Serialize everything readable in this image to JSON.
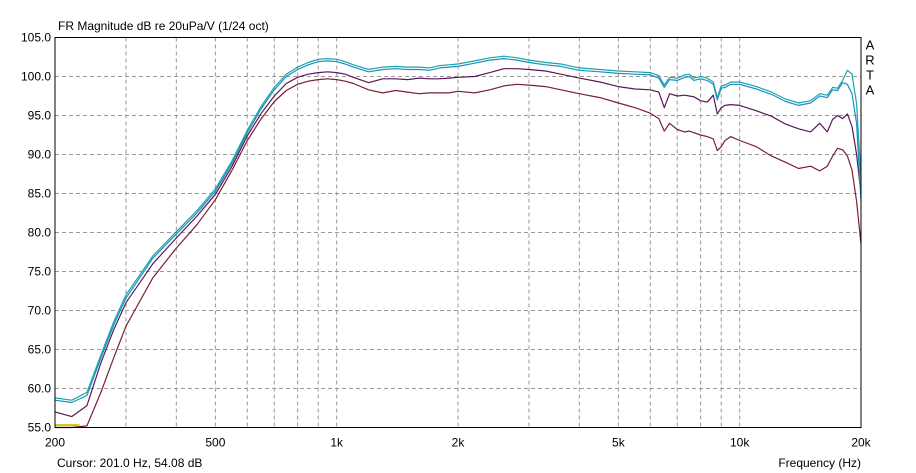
{
  "chart_data": {
    "type": "line",
    "title": "FR Magnitude dB re 20uPa/V (1/24 oct)",
    "xlabel": "Frequency (Hz)",
    "ylabel": "",
    "x_scale": "log",
    "xlim": [
      200,
      20000
    ],
    "ylim": [
      55.0,
      105.0
    ],
    "x_tick_labels": [
      {
        "value": 200,
        "label": "200"
      },
      {
        "value": 500,
        "label": "500"
      },
      {
        "value": 1000,
        "label": "1k"
      },
      {
        "value": 2000,
        "label": "2k"
      },
      {
        "value": 5000,
        "label": "5k"
      },
      {
        "value": 10000,
        "label": "10k"
      },
      {
        "value": 20000,
        "label": "20k"
      }
    ],
    "y_tick_labels": [
      "55.0",
      "60.0",
      "65.0",
      "70.0",
      "75.0",
      "80.0",
      "85.0",
      "90.0",
      "95.0",
      "100.0",
      "105.0"
    ],
    "grid": true,
    "side_label": "A R T A",
    "cursor_text": "Cursor: 201.0 Hz, 54.08 dB",
    "cursor_marker": {
      "x_start": 200,
      "x_end": 230,
      "y": 55.3,
      "color": "#c8c800"
    },
    "series": [
      {
        "color": "#7a1f35",
        "x": [
          200,
          220,
          240,
          260,
          280,
          300,
          350,
          400,
          450,
          500,
          550,
          600,
          650,
          700,
          750,
          800,
          850,
          900,
          950,
          1000,
          1050,
          1100,
          1200,
          1300,
          1400,
          1500,
          1600,
          1700,
          1800,
          1900,
          2000,
          2200,
          2400,
          2600,
          2800,
          3000,
          3300,
          3600,
          4000,
          4500,
          5000,
          5500,
          6000,
          6300,
          6500,
          6700,
          7000,
          7300,
          7500,
          7700,
          8000,
          8300,
          8600,
          8800,
          9000,
          9200,
          9500,
          10000,
          11000,
          12000,
          13000,
          14000,
          15000,
          15800,
          16500,
          17000,
          17500,
          18000,
          18500,
          19000,
          19500,
          20000
        ],
        "y": [
          55.0,
          55.0,
          55.2,
          59.5,
          64.0,
          68.0,
          74.2,
          78.0,
          81.0,
          84.2,
          88.0,
          91.8,
          94.6,
          96.8,
          98.2,
          99.0,
          99.4,
          99.6,
          99.7,
          99.6,
          99.4,
          99.1,
          98.3,
          97.9,
          98.2,
          98.0,
          97.8,
          97.9,
          97.9,
          97.9,
          98.1,
          97.9,
          98.3,
          98.8,
          99.0,
          98.9,
          98.7,
          98.3,
          97.8,
          97.3,
          96.6,
          96.0,
          95.3,
          94.6,
          93.0,
          94.0,
          93.2,
          92.9,
          93.0,
          92.8,
          92.5,
          92.3,
          92.0,
          90.5,
          91.0,
          91.8,
          92.3,
          91.8,
          91.0,
          89.8,
          89.0,
          88.2,
          88.5,
          87.9,
          88.5,
          89.8,
          90.8,
          90.6,
          89.8,
          88.0,
          84.0,
          78.5
        ]
      },
      {
        "color": "#5a1858",
        "x": [
          200,
          220,
          240,
          260,
          280,
          300,
          350,
          400,
          450,
          500,
          550,
          600,
          650,
          700,
          750,
          800,
          850,
          900,
          950,
          1000,
          1050,
          1100,
          1200,
          1300,
          1400,
          1500,
          1600,
          1700,
          1800,
          1900,
          2000,
          2200,
          2400,
          2600,
          2800,
          3000,
          3300,
          3600,
          4000,
          4500,
          5000,
          5500,
          6000,
          6300,
          6500,
          6700,
          7000,
          7300,
          7500,
          7700,
          8000,
          8300,
          8600,
          8800,
          9000,
          9200,
          9500,
          10000,
          11000,
          12000,
          13000,
          14000,
          15000,
          15800,
          16500,
          17000,
          17500,
          18000,
          18500,
          19000,
          19500,
          20000
        ],
        "y": [
          57.0,
          56.4,
          57.8,
          63.3,
          67.6,
          71.0,
          76.0,
          79.3,
          82.1,
          84.9,
          88.5,
          92.4,
          95.3,
          97.5,
          99.1,
          99.9,
          100.3,
          100.5,
          100.6,
          100.5,
          100.3,
          99.9,
          99.2,
          99.7,
          99.7,
          99.6,
          99.8,
          99.7,
          99.7,
          99.8,
          99.9,
          100.0,
          100.5,
          101.0,
          101.0,
          100.9,
          100.7,
          100.3,
          99.8,
          99.3,
          98.7,
          98.4,
          98.3,
          98.0,
          96.0,
          97.8,
          97.5,
          97.6,
          97.5,
          97.4,
          96.9,
          96.7,
          97.6,
          95.2,
          96.0,
          96.3,
          96.4,
          96.3,
          95.6,
          94.9,
          93.9,
          93.3,
          92.9,
          94.0,
          92.9,
          94.5,
          95.0,
          94.6,
          95.2,
          93.6,
          90.0,
          85.0
        ]
      },
      {
        "color": "#1a8fc8",
        "x": [
          200,
          220,
          240,
          260,
          280,
          300,
          350,
          400,
          450,
          500,
          550,
          600,
          650,
          700,
          750,
          800,
          850,
          900,
          950,
          1000,
          1050,
          1100,
          1200,
          1300,
          1400,
          1500,
          1600,
          1700,
          1800,
          1900,
          2000,
          2200,
          2400,
          2600,
          2800,
          3000,
          3300,
          3600,
          4000,
          4500,
          5000,
          5500,
          6000,
          6300,
          6500,
          6700,
          7000,
          7300,
          7500,
          7700,
          8000,
          8300,
          8600,
          8800,
          9000,
          9200,
          9500,
          10000,
          11000,
          12000,
          13000,
          14000,
          15000,
          15800,
          16500,
          17000,
          17500,
          18000,
          18500,
          19000,
          19500,
          20000
        ],
        "y": [
          58.5,
          58.2,
          59.1,
          63.9,
          68.2,
          71.6,
          76.7,
          79.8,
          82.5,
          85.3,
          88.9,
          92.8,
          95.9,
          98.3,
          100.0,
          100.9,
          101.5,
          101.9,
          102.0,
          101.9,
          101.6,
          101.2,
          100.6,
          100.9,
          101.0,
          100.9,
          100.9,
          100.8,
          101.1,
          101.2,
          101.3,
          101.7,
          102.1,
          102.3,
          102.1,
          101.8,
          101.5,
          101.3,
          100.8,
          100.6,
          100.4,
          100.3,
          100.2,
          99.8,
          98.6,
          99.6,
          99.5,
          99.9,
          100.0,
          99.5,
          99.7,
          99.5,
          99.0,
          97.0,
          98.5,
          98.6,
          99.0,
          99.0,
          98.4,
          97.7,
          96.8,
          96.3,
          96.6,
          97.5,
          97.3,
          98.3,
          98.2,
          99.2,
          99.0,
          97.8,
          94.0,
          84.0
        ]
      },
      {
        "color": "#1aa6a4",
        "x": [
          200,
          220,
          240,
          260,
          280,
          300,
          350,
          400,
          450,
          500,
          550,
          600,
          650,
          700,
          750,
          800,
          850,
          900,
          950,
          1000,
          1050,
          1100,
          1200,
          1300,
          1400,
          1500,
          1600,
          1700,
          1800,
          1900,
          2000,
          2200,
          2400,
          2600,
          2800,
          3000,
          3300,
          3600,
          4000,
          4500,
          5000,
          5500,
          6000,
          6300,
          6500,
          6700,
          7000,
          7300,
          7500,
          7700,
          8000,
          8300,
          8600,
          8800,
          9000,
          9200,
          9500,
          10000,
          11000,
          12000,
          13000,
          14000,
          15000,
          15800,
          16500,
          17000,
          17500,
          18000,
          18500,
          19000,
          19500,
          20000
        ],
        "y": [
          58.8,
          58.5,
          59.5,
          64.3,
          68.6,
          72.0,
          77.0,
          80.1,
          82.8,
          85.6,
          89.2,
          93.1,
          96.2,
          98.6,
          100.3,
          101.2,
          101.8,
          102.2,
          102.3,
          102.2,
          101.9,
          101.5,
          100.9,
          101.2,
          101.3,
          101.2,
          101.2,
          101.1,
          101.4,
          101.5,
          101.6,
          102.0,
          102.4,
          102.6,
          102.4,
          102.1,
          101.8,
          101.6,
          101.1,
          100.9,
          100.7,
          100.6,
          100.5,
          100.1,
          98.9,
          99.9,
          99.8,
          100.2,
          100.3,
          99.8,
          100.0,
          99.8,
          99.3,
          97.3,
          98.8,
          98.9,
          99.3,
          99.3,
          98.7,
          98.0,
          97.1,
          96.6,
          96.9,
          97.8,
          97.6,
          98.6,
          98.5,
          99.5,
          100.8,
          100.3,
          96.5,
          87.0
        ]
      }
    ]
  }
}
